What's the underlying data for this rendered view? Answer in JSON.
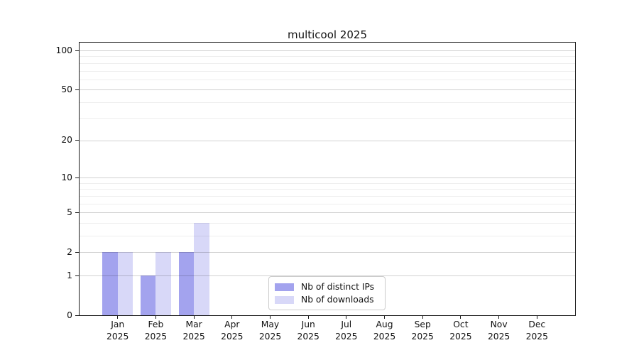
{
  "figure": {
    "background": "#ffffff"
  },
  "chart_data": {
    "type": "bar",
    "title": "multicool 2025",
    "categories": [
      "Jan",
      "Feb",
      "Mar",
      "Apr",
      "May",
      "Jun",
      "Jul",
      "Aug",
      "Sep",
      "Oct",
      "Nov",
      "Dec"
    ],
    "x_tick_year": "2025",
    "series": [
      {
        "name": "Nb of distinct IPs",
        "color": "#a3a3ee",
        "values": [
          2,
          1,
          2,
          0,
          0,
          0,
          0,
          0,
          0,
          0,
          0,
          0
        ]
      },
      {
        "name": "Nb of downloads",
        "color": "#d8d8f8",
        "values": [
          2,
          2,
          4,
          0,
          0,
          0,
          0,
          0,
          0,
          0,
          0,
          0
        ]
      }
    ],
    "yscale": "log1p",
    "ylim": [
      0,
      114.7
    ],
    "y_major_ticks": [
      0,
      1,
      2,
      5,
      10,
      20,
      50,
      100
    ],
    "y_minor_gridlines": [
      3,
      4,
      6,
      7,
      8,
      9,
      30,
      40,
      60,
      70,
      80,
      90
    ],
    "grid": "horizontal",
    "legend_position": "lower-center-inside"
  },
  "colors": {
    "spine": "#1a1a1a",
    "text": "#111111",
    "grid_major": "rgba(0,0,0,0.18)",
    "grid_minor": "rgba(0,0,0,0.065)",
    "legend_border": "#cccccc"
  }
}
